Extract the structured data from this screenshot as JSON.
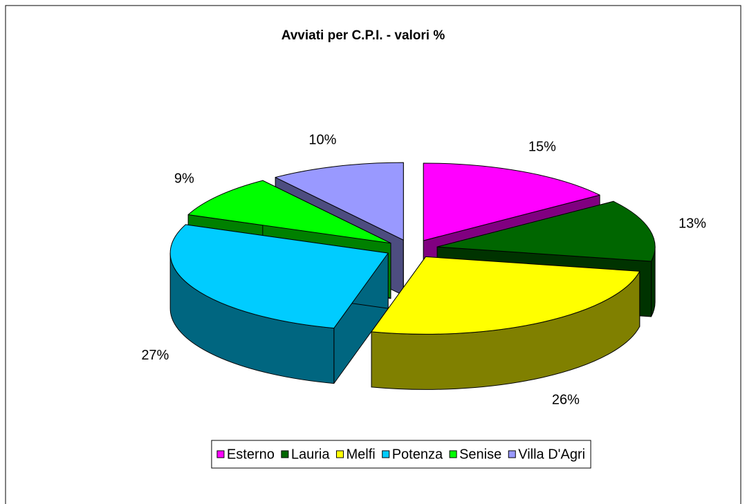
{
  "chart_data": {
    "type": "pie3d",
    "title": "Avviati per C.P.I. - valori %",
    "categories": [
      "Esterno",
      "Lauria",
      "Melfi",
      "Potenza",
      "Senise",
      "Villa D'Agri"
    ],
    "values": [
      15,
      13,
      26,
      27,
      9,
      10
    ],
    "value_labels": [
      "15%",
      "13%",
      "26%",
      "27%",
      "9%",
      "10%"
    ],
    "colors": [
      "#ff00ff",
      "#006600",
      "#ffff00",
      "#00ccff",
      "#00ff00",
      "#9999ff"
    ],
    "legend": "bottom"
  }
}
